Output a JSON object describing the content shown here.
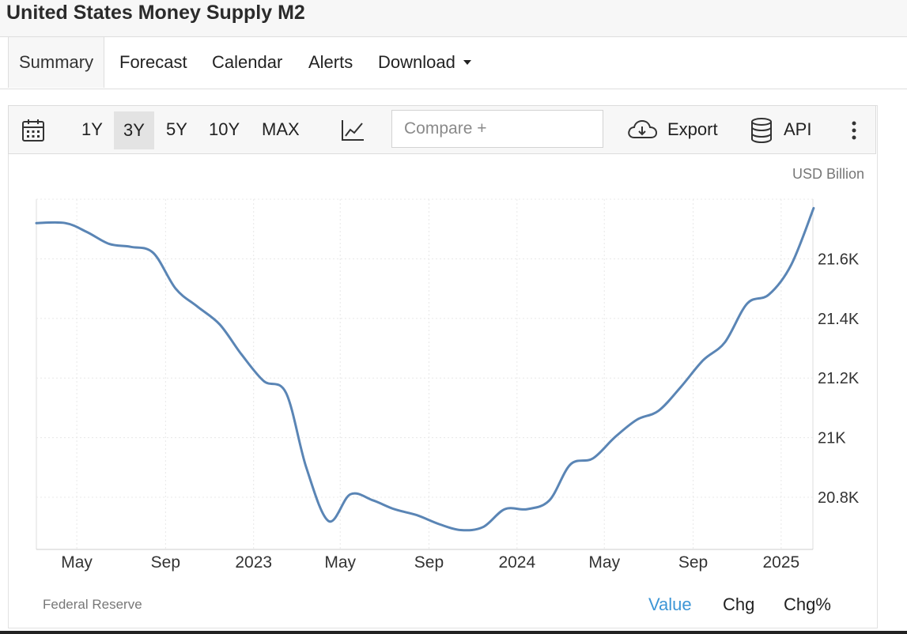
{
  "page_title": "United States Money Supply M2",
  "tabs": [
    {
      "label": "Summary",
      "active": true
    },
    {
      "label": "Forecast"
    },
    {
      "label": "Calendar"
    },
    {
      "label": "Alerts"
    },
    {
      "label": "Download",
      "has_dropdown": true
    }
  ],
  "toolbar": {
    "ranges": [
      "1Y",
      "3Y",
      "5Y",
      "10Y",
      "MAX"
    ],
    "active_range": "3Y",
    "compare_placeholder": "Compare +",
    "export_label": "Export",
    "api_label": "API",
    "icons": [
      "calendar-icon",
      "line-chart-icon",
      "cloud-download-icon",
      "database-icon",
      "more-vertical-icon"
    ]
  },
  "footer": {
    "source": "Federal Reserve",
    "modes": [
      "Value",
      "Chg",
      "Chg%"
    ],
    "active_mode": "Value"
  },
  "colors": {
    "line": "#5a85b5",
    "active_mode": "#3d96d6",
    "grid": "#e8e8e8"
  },
  "chart_data": {
    "type": "line",
    "unit_label": "USD Billion",
    "x_ticks": [
      "May",
      "Sep",
      "2023",
      "May",
      "Sep",
      "2024",
      "May",
      "Sep",
      "2025"
    ],
    "y_ticks": [
      "20.8K",
      "21K",
      "21.2K",
      "21.4K",
      "21.6K"
    ],
    "y_tick_values": [
      20800,
      21000,
      21200,
      21400,
      21600
    ],
    "ylim": [
      20625,
      21800
    ],
    "xlim": [
      "2022-03-06",
      "2025-02-14"
    ],
    "grid": true,
    "series": [
      {
        "x": [
          "2022-03",
          "2022-04",
          "2022-05",
          "2022-06",
          "2022-07",
          "2022-08",
          "2022-09",
          "2022-10",
          "2022-11",
          "2022-12",
          "2023-01",
          "2023-02",
          "2023-03",
          "2023-04",
          "2023-05",
          "2023-06",
          "2023-07",
          "2023-08",
          "2023-09",
          "2023-10",
          "2023-11",
          "2023-12",
          "2024-01",
          "2024-02",
          "2024-03",
          "2024-04",
          "2024-05",
          "2024-06",
          "2024-07",
          "2024-08",
          "2024-09",
          "2024-10",
          "2024-11",
          "2024-12",
          "2025-01",
          "2025-02"
        ],
        "y": [
          21720,
          21720,
          21690,
          21650,
          21640,
          21620,
          21500,
          21440,
          21380,
          21280,
          21190,
          21150,
          20900,
          20720,
          20810,
          20790,
          20760,
          20740,
          20710,
          20690,
          20700,
          20760,
          20760,
          20790,
          20910,
          20930,
          21000,
          21060,
          21090,
          21170,
          21260,
          21320,
          21450,
          21480,
          21580,
          21770
        ]
      }
    ]
  }
}
